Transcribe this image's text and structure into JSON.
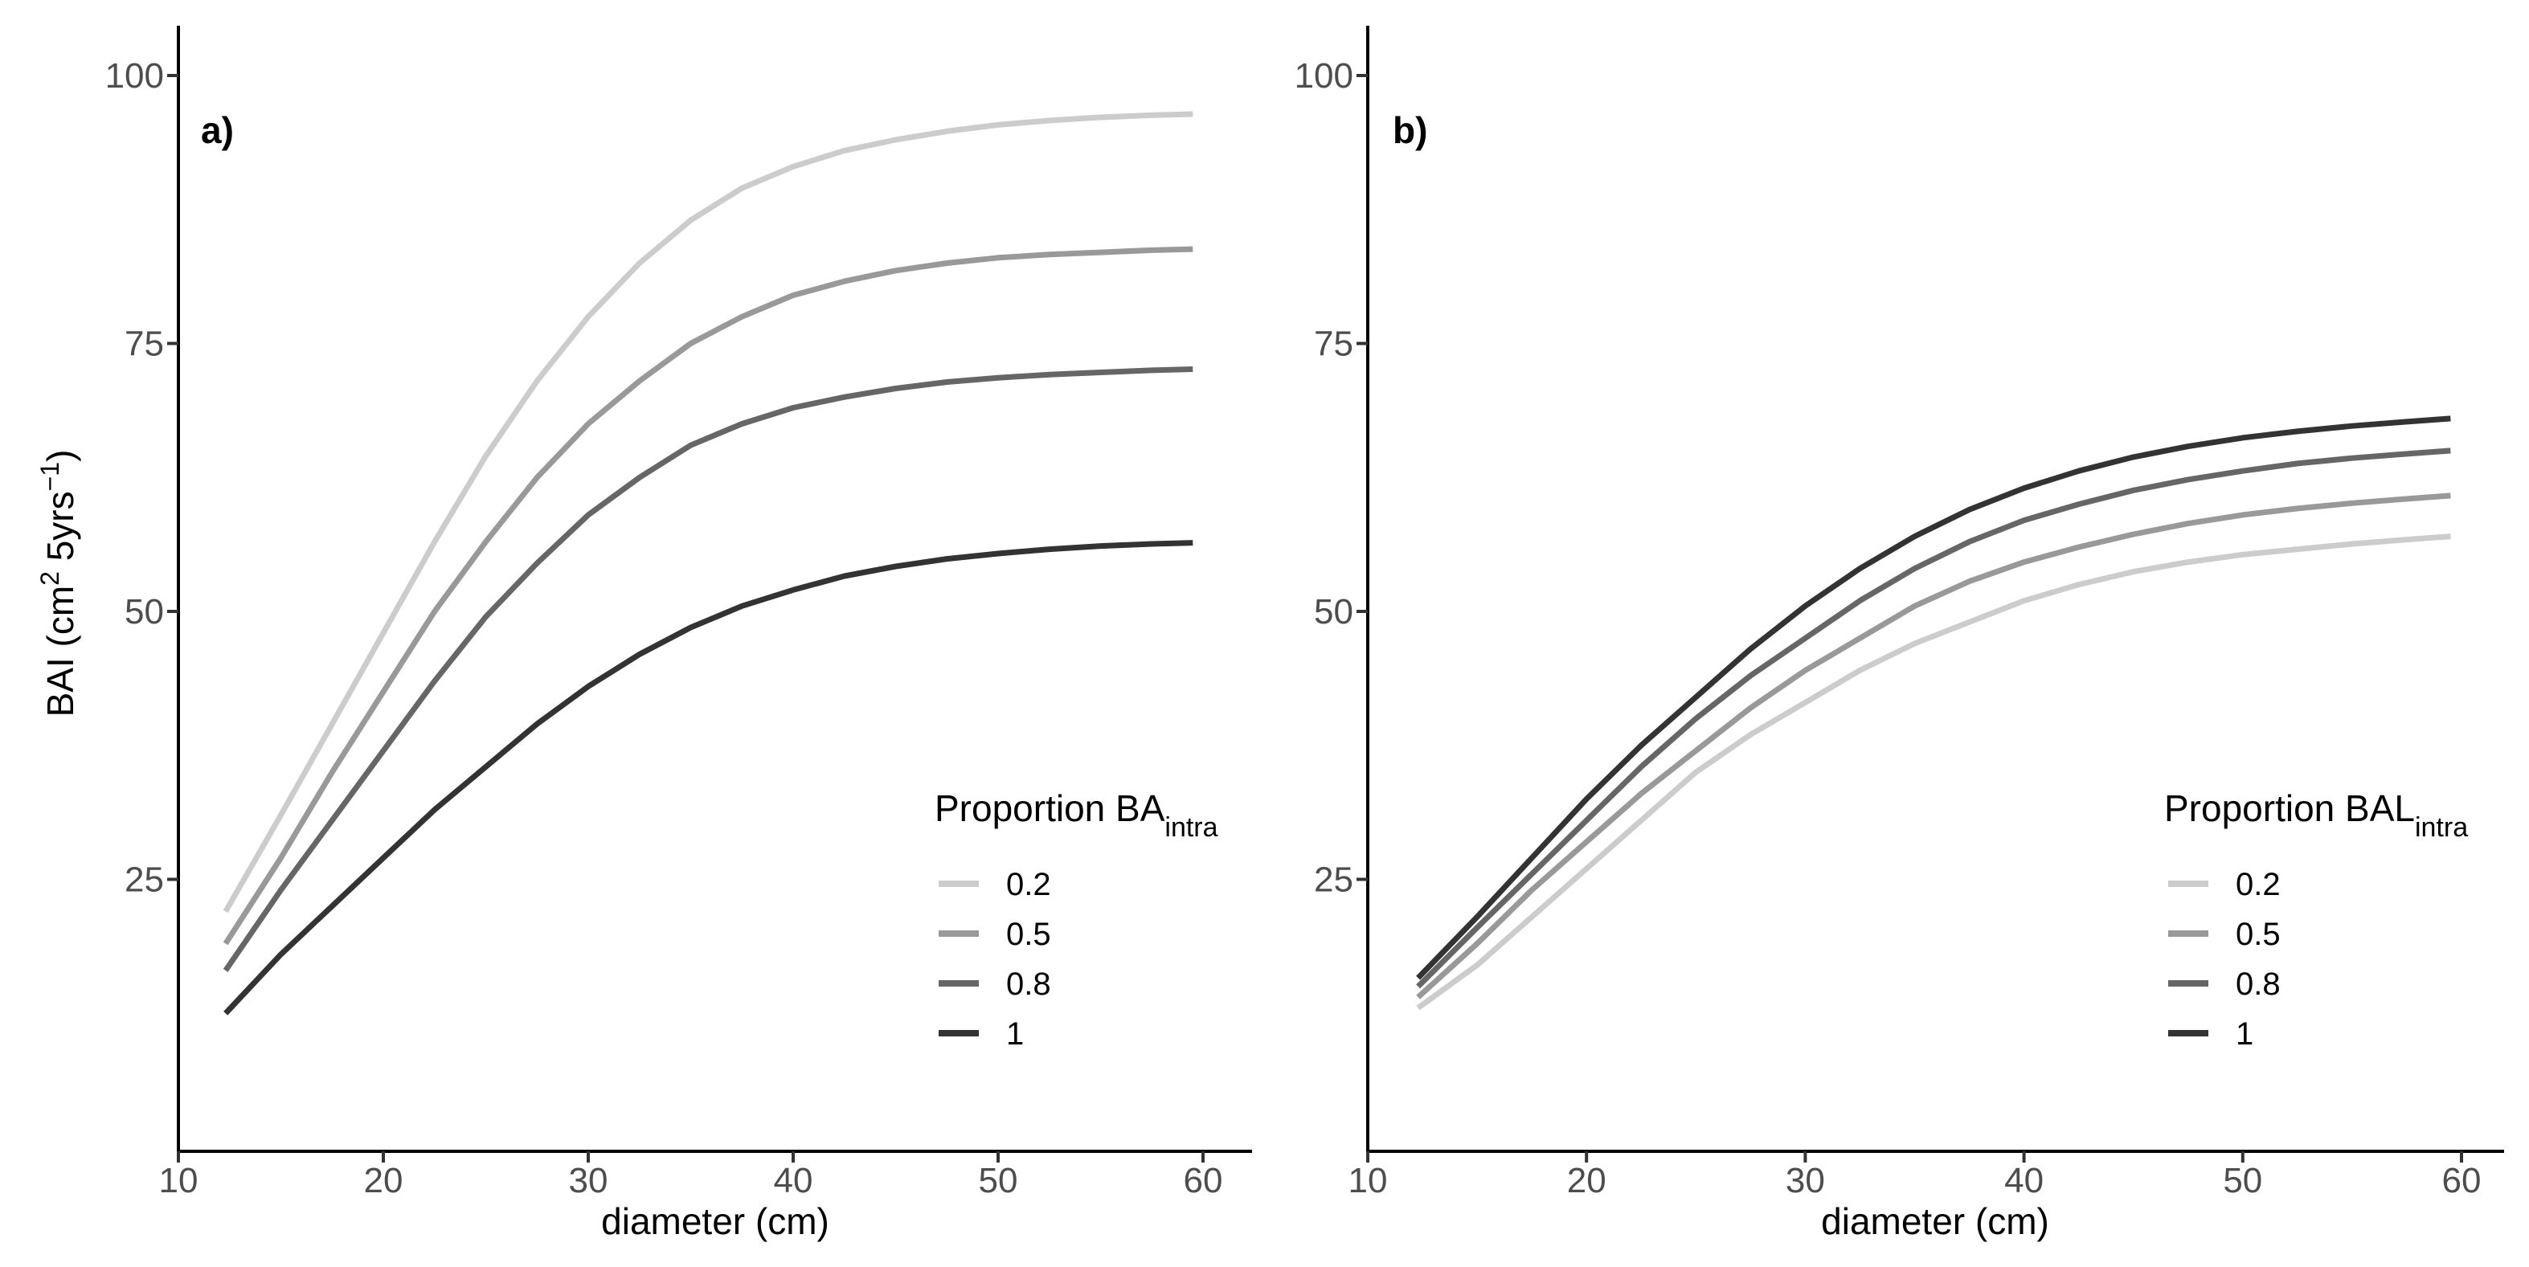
{
  "chart_data": [
    {
      "type": "line",
      "panel_label": "a)",
      "xlabel": "diameter (cm)",
      "ylabel": "BAI (cm",
      "ylabel_sup1": "2",
      "ylabel_mid": " 5yrs",
      "ylabel_sup2": "−1",
      "ylabel_end": ")",
      "xlim": [
        10,
        62
      ],
      "ylim": [
        0,
        105
      ],
      "xticks": [
        10,
        20,
        30,
        40,
        50,
        60
      ],
      "yticks": [
        25,
        50,
        75,
        100
      ],
      "grid": false,
      "legend_title": "Proportion BA",
      "legend_title_sub": "intra",
      "legend_position": "bottom-right",
      "x": [
        12.3,
        15,
        17.5,
        20,
        22.5,
        25,
        27.5,
        30,
        32.5,
        35,
        37.5,
        40,
        42.5,
        45,
        47.5,
        50,
        52.5,
        55,
        57.5,
        59.5
      ],
      "series": [
        {
          "name": "0.2",
          "color": "#cccccc",
          "values": [
            22.0,
            31.0,
            39.5,
            48.0,
            56.5,
            64.5,
            71.5,
            77.5,
            82.5,
            86.5,
            89.5,
            91.5,
            93.0,
            94.0,
            94.8,
            95.4,
            95.8,
            96.1,
            96.3,
            96.4
          ]
        },
        {
          "name": "0.5",
          "color": "#999999",
          "values": [
            19.0,
            27.0,
            35.0,
            42.5,
            50.0,
            56.5,
            62.5,
            67.5,
            71.5,
            75.0,
            77.5,
            79.5,
            80.8,
            81.8,
            82.5,
            83.0,
            83.3,
            83.5,
            83.7,
            83.8
          ]
        },
        {
          "name": "0.8",
          "color": "#666666",
          "values": [
            16.5,
            24.0,
            30.5,
            37.0,
            43.5,
            49.5,
            54.5,
            59.0,
            62.5,
            65.5,
            67.5,
            69.0,
            70.0,
            70.8,
            71.4,
            71.8,
            72.1,
            72.3,
            72.5,
            72.6
          ]
        },
        {
          "name": "1",
          "color": "#333333",
          "values": [
            12.5,
            18.0,
            22.5,
            27.0,
            31.5,
            35.5,
            39.5,
            43.0,
            46.0,
            48.5,
            50.5,
            52.0,
            53.3,
            54.2,
            54.9,
            55.4,
            55.8,
            56.1,
            56.3,
            56.4
          ]
        }
      ]
    },
    {
      "type": "line",
      "panel_label": "b)",
      "xlabel": "diameter (cm)",
      "xlim": [
        10,
        62
      ],
      "ylim": [
        0,
        105
      ],
      "xticks": [
        10,
        20,
        30,
        40,
        50,
        60
      ],
      "yticks": [
        25,
        50,
        75,
        100
      ],
      "grid": false,
      "legend_title": "Proportion BAL",
      "legend_title_sub": "intra",
      "legend_position": "bottom-right",
      "x": [
        12.3,
        15,
        17.5,
        20,
        22.5,
        25,
        27.5,
        30,
        32.5,
        35,
        37.5,
        40,
        42.5,
        45,
        47.5,
        50,
        52.5,
        55,
        57.5,
        59.5
      ],
      "series": [
        {
          "name": "0.2",
          "color": "#cccccc",
          "values": [
            13.0,
            17.0,
            21.5,
            26.0,
            30.5,
            35.0,
            38.5,
            41.5,
            44.5,
            47.0,
            49.0,
            51.0,
            52.5,
            53.7,
            54.6,
            55.3,
            55.8,
            56.3,
            56.7,
            57.0
          ]
        },
        {
          "name": "0.5",
          "color": "#999999",
          "values": [
            14.0,
            19.0,
            24.0,
            28.5,
            33.0,
            37.0,
            41.0,
            44.5,
            47.5,
            50.5,
            52.8,
            54.6,
            56.0,
            57.2,
            58.2,
            59.0,
            59.6,
            60.1,
            60.5,
            60.8
          ]
        },
        {
          "name": "0.8",
          "color": "#666666",
          "values": [
            15.0,
            20.5,
            25.5,
            30.5,
            35.5,
            40.0,
            44.0,
            47.5,
            51.0,
            54.0,
            56.5,
            58.5,
            60.0,
            61.3,
            62.3,
            63.1,
            63.8,
            64.3,
            64.7,
            65.0
          ]
        },
        {
          "name": "1",
          "color": "#333333",
          "values": [
            15.8,
            21.5,
            27.0,
            32.5,
            37.5,
            42.0,
            46.5,
            50.5,
            54.0,
            57.0,
            59.5,
            61.5,
            63.1,
            64.4,
            65.4,
            66.2,
            66.8,
            67.3,
            67.7,
            68.0
          ]
        }
      ]
    }
  ]
}
